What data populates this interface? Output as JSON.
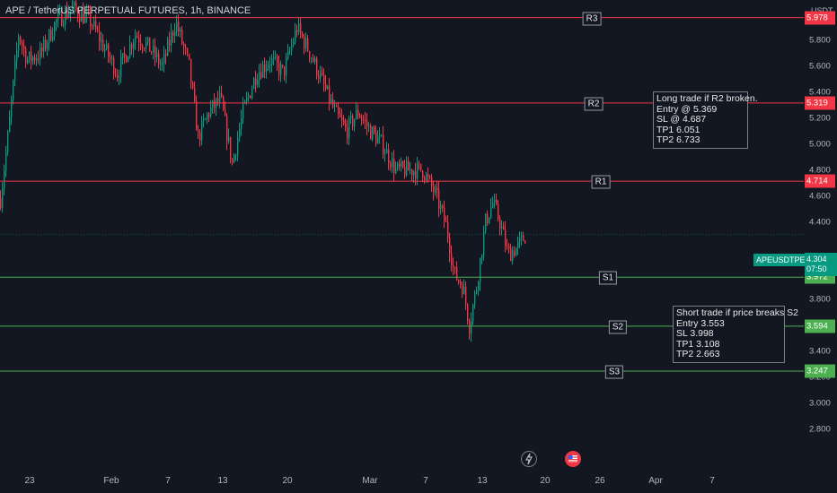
{
  "title": "APE / TetherUS PERPETUAL FUTURES, 1h, BINANCE",
  "axis": {
    "unit": "USDT",
    "y_ticks": [
      "6.000",
      "5.800",
      "5.600",
      "5.400",
      "5.200",
      "5.000",
      "4.800",
      "4.600",
      "4.400",
      "3.800",
      "3.600",
      "3.400",
      "3.200",
      "3.000",
      "2.800"
    ],
    "x_ticks": [
      "23",
      "Feb",
      "7",
      "13",
      "20",
      "Mar",
      "7",
      "13",
      "20",
      "26",
      "Apr",
      "7"
    ]
  },
  "levels": [
    {
      "name": "R3",
      "value": "5.978",
      "type": "resistance",
      "color": "#f23645"
    },
    {
      "name": "R2",
      "value": "5.319",
      "type": "resistance",
      "color": "#f23645"
    },
    {
      "name": "R1",
      "value": "4.714",
      "type": "resistance",
      "color": "#f23645"
    },
    {
      "name": "S1",
      "value": "3.972",
      "type": "support",
      "color": "#4caf50"
    },
    {
      "name": "S2",
      "value": "3.594",
      "type": "support",
      "color": "#4caf50"
    },
    {
      "name": "S3",
      "value": "3.247",
      "type": "support",
      "color": "#4caf50"
    }
  ],
  "current": {
    "symbol": "APEUSDTPERP",
    "price": "4.304",
    "countdown": "07:50",
    "color": "#089981"
  },
  "notes": {
    "long": [
      "Long trade if R2 broken.",
      "Entry @ 5.369",
      "SL @ 4.687",
      "TP1 6.051",
      "TP2 6.733"
    ],
    "short": [
      "Short trade if price breaks S2",
      "Entry 3.553",
      "SL 3.998",
      "TP1  3.108",
      "TP2   2.663"
    ]
  },
  "icons": {
    "lightning": "lightning-icon",
    "flag": "us-flag-icon"
  },
  "colors": {
    "background": "#131722",
    "up": "#089981",
    "down": "#f23645",
    "grid": "#1e222d"
  }
}
